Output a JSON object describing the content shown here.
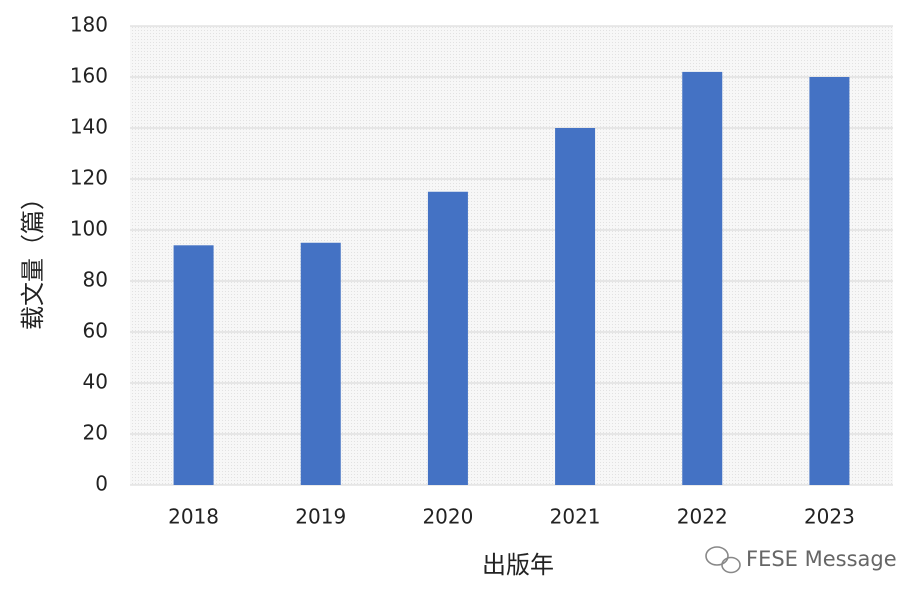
{
  "chart_data": {
    "type": "bar",
    "categories": [
      "2018",
      "2019",
      "2020",
      "2021",
      "2022",
      "2023"
    ],
    "values": [
      94,
      95,
      115,
      140,
      162,
      160
    ],
    "color": "#4472c4",
    "ylim": [
      0,
      180
    ],
    "yticks": [
      0,
      20,
      40,
      60,
      80,
      100,
      120,
      140,
      160,
      180
    ],
    "grid": true,
    "y_label": "载文量（篇）",
    "x_label": "出版年",
    "watermark": "FESE Message"
  }
}
